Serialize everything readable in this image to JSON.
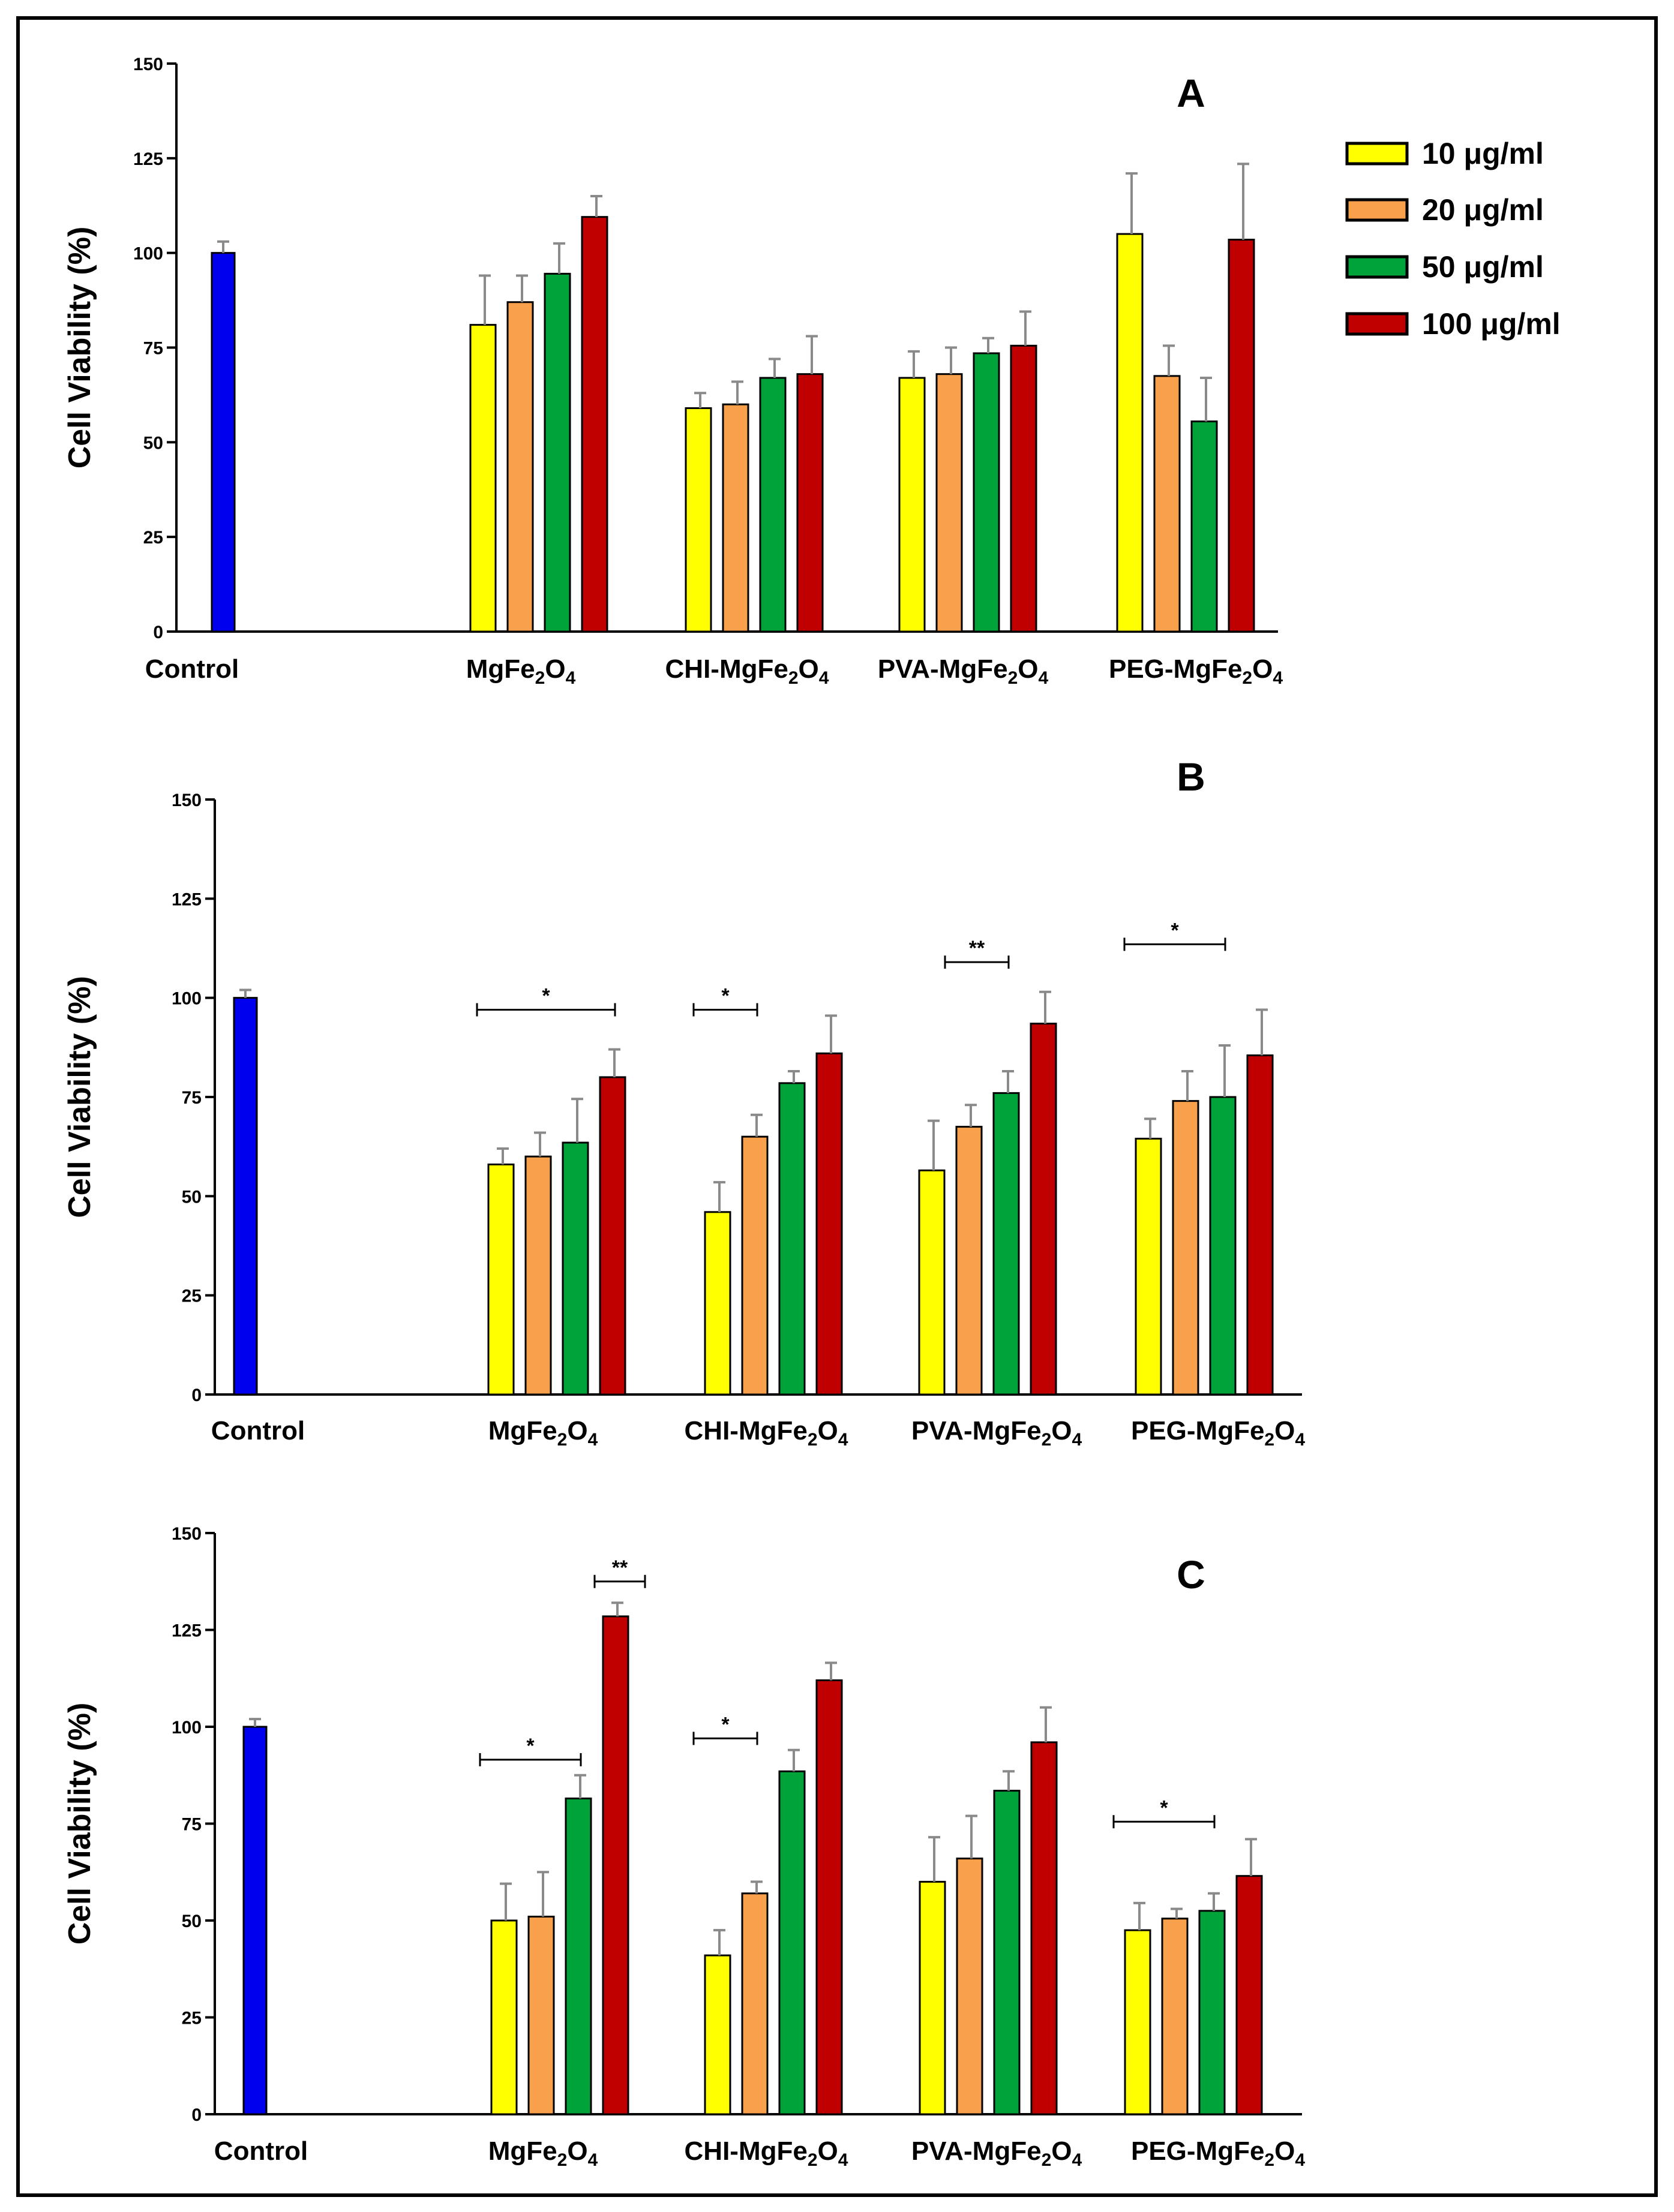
{
  "chart_data": [
    {
      "type": "bar",
      "panel_label": "A",
      "ylabel": "Cell Viability (%)",
      "ylim": [
        0,
        150
      ],
      "yticks": [
        "0",
        "25",
        "50",
        "75",
        "100",
        "125",
        "150"
      ],
      "control": {
        "name": "Control",
        "value": 100,
        "err": 3,
        "color": "#0000ee"
      },
      "categories": [
        "MgFe",
        "CHI-MgFe",
        "PVA-MgFe",
        "PEG-MgFe"
      ],
      "series": [
        {
          "name": "10 μg/ml",
          "values": [
            81,
            59,
            67,
            105
          ],
          "errors": [
            13,
            4,
            7,
            16
          ]
        },
        {
          "name": "20 μg/ml",
          "values": [
            87,
            60,
            68,
            67.5
          ],
          "errors": [
            7,
            6,
            7,
            8
          ]
        },
        {
          "name": "50 μg/ml",
          "values": [
            94.5,
            67,
            73.5,
            55.5
          ],
          "errors": [
            8,
            5,
            4,
            11.5
          ]
        },
        {
          "name": "100 μg/ml",
          "values": [
            109.5,
            68,
            75.5,
            103.5
          ],
          "errors": [
            5.5,
            10,
            9,
            20
          ]
        }
      ],
      "significance": []
    },
    {
      "type": "bar",
      "panel_label": "B",
      "ylabel": "Cell Viability (%)",
      "ylim": [
        0,
        150
      ],
      "yticks": [
        "0",
        "25",
        "50",
        "75",
        "100",
        "125",
        "150"
      ],
      "control": {
        "name": "Control",
        "value": 100,
        "err": 2,
        "color": "#0000ee"
      },
      "categories": [
        "MgFe",
        "CHI-MgFe",
        "PVA-MgFe",
        "PEG-MgFe"
      ],
      "series": [
        {
          "name": "10 μg/ml",
          "values": [
            58,
            46,
            56.5,
            64.5
          ],
          "errors": [
            4,
            7.5,
            12.5,
            5
          ]
        },
        {
          "name": "20 μg/ml",
          "values": [
            60,
            65,
            67.5,
            74
          ],
          "errors": [
            6,
            5.5,
            5.5,
            7.5
          ]
        },
        {
          "name": "50 μg/ml",
          "values": [
            63.5,
            78.5,
            76,
            75
          ],
          "errors": [
            11,
            3,
            5.5,
            13
          ]
        },
        {
          "name": "100 μg/ml",
          "values": [
            80,
            86,
            93.5,
            85.5
          ],
          "errors": [
            7,
            9.5,
            8,
            11.5
          ]
        }
      ],
      "significance": [
        {
          "group": 0,
          "from": 0,
          "to": 3,
          "label": "*",
          "y": 97
        },
        {
          "group": 1,
          "from": 0,
          "to": 1,
          "label": "*",
          "y": 97
        },
        {
          "group": 2,
          "from": 1,
          "to": 2,
          "label": "**",
          "y": 109
        },
        {
          "group": 3,
          "from": 0,
          "to": 2,
          "label": "*",
          "y": 113.5
        }
      ]
    },
    {
      "type": "bar",
      "panel_label": "C",
      "ylabel": "Cell Viability (%)",
      "ylim": [
        0,
        150
      ],
      "yticks": [
        "0",
        "25",
        "50",
        "75",
        "100",
        "125",
        "150"
      ],
      "control": {
        "name": "Control",
        "value": 100,
        "err": 2,
        "color": "#0000ee"
      },
      "categories": [
        "MgFe",
        "CHI-MgFe",
        "PVA-MgFe",
        "PEG-MgFe"
      ],
      "series": [
        {
          "name": "10 μg/ml",
          "values": [
            50,
            41,
            60,
            47.5
          ],
          "errors": [
            9.5,
            6.5,
            11.5,
            7
          ]
        },
        {
          "name": "20 μg/ml",
          "values": [
            51,
            57,
            66,
            50.5
          ],
          "errors": [
            11.5,
            3,
            11,
            2.5
          ]
        },
        {
          "name": "50 μg/ml",
          "values": [
            81.5,
            88.5,
            83.5,
            52.5
          ],
          "errors": [
            6,
            5.5,
            5,
            4.5
          ]
        },
        {
          "name": "100 μg/ml",
          "values": [
            128.5,
            112,
            96,
            61.5
          ],
          "errors": [
            3.5,
            4.5,
            9,
            9.5
          ]
        }
      ],
      "significance": [
        {
          "group": 0,
          "from": 0,
          "to": 2,
          "label": "*",
          "y": 91.5
        },
        {
          "group": 0,
          "from": 3,
          "to": 3,
          "label": "**",
          "y": 137.5,
          "wide": true
        },
        {
          "group": 1,
          "from": 0,
          "to": 1,
          "label": "*",
          "y": 97
        },
        {
          "group": 3,
          "from": 0,
          "to": 2,
          "label": "*",
          "y": 75.5
        }
      ]
    }
  ],
  "category_subscript": {
    "sub1": "2",
    "mid": "O",
    "sub2": "4"
  },
  "legend": [
    {
      "label": "10 μg/ml",
      "color": "#ffff00"
    },
    {
      "label": "20 μg/ml",
      "color": "#f9a04d"
    },
    {
      "label": "50 μg/ml",
      "color": "#00a339"
    },
    {
      "label": "100 μg/ml",
      "color": "#c00000"
    }
  ],
  "colors": {
    "control": "#0000ee",
    "s10": "#ffff00",
    "s20": "#f9a04d",
    "s50": "#00a339",
    "s100": "#c00000",
    "error": "#8a8a8a",
    "frame": "#000000"
  }
}
